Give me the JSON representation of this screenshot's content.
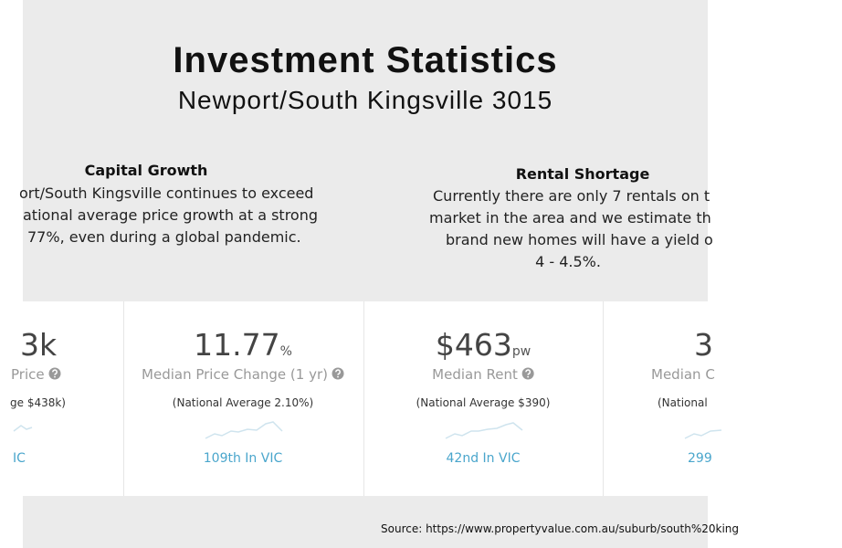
{
  "header": {
    "title": "Investment Statistics",
    "subtitle": "Newport/South Kingsville 3015"
  },
  "capital_growth": {
    "heading": "Capital Growth",
    "lines": [
      "ort/South Kingsville continues to exceed",
      "ational average price growth at a strong",
      "77%, even during a global pandemic."
    ]
  },
  "rental_shortage": {
    "heading": "Rental Shortage",
    "lines": [
      "Currently there are only 7 rentals on t",
      "market in the area and we estimate th",
      "brand new homes will have a yield o",
      "4 - 4.5%."
    ]
  },
  "cards": [
    {
      "value": "3k",
      "label": "Price",
      "national": "ge $438k)",
      "rank": "IC"
    },
    {
      "value": "11.77",
      "unit": "%",
      "label": "Median Price Change (1 yr)",
      "national": "(National Average 2.10%)",
      "rank": "109th In VIC"
    },
    {
      "value": "$463",
      "unit": "pw",
      "label": "Median Rent",
      "national": "(National Average $390)",
      "rank": "42nd In VIC"
    },
    {
      "value": "3",
      "label": "Median C",
      "national": "(National",
      "rank": "299"
    }
  ],
  "source": "Source: https://www.propertyvalue.com.au/suburb/south%20king"
}
